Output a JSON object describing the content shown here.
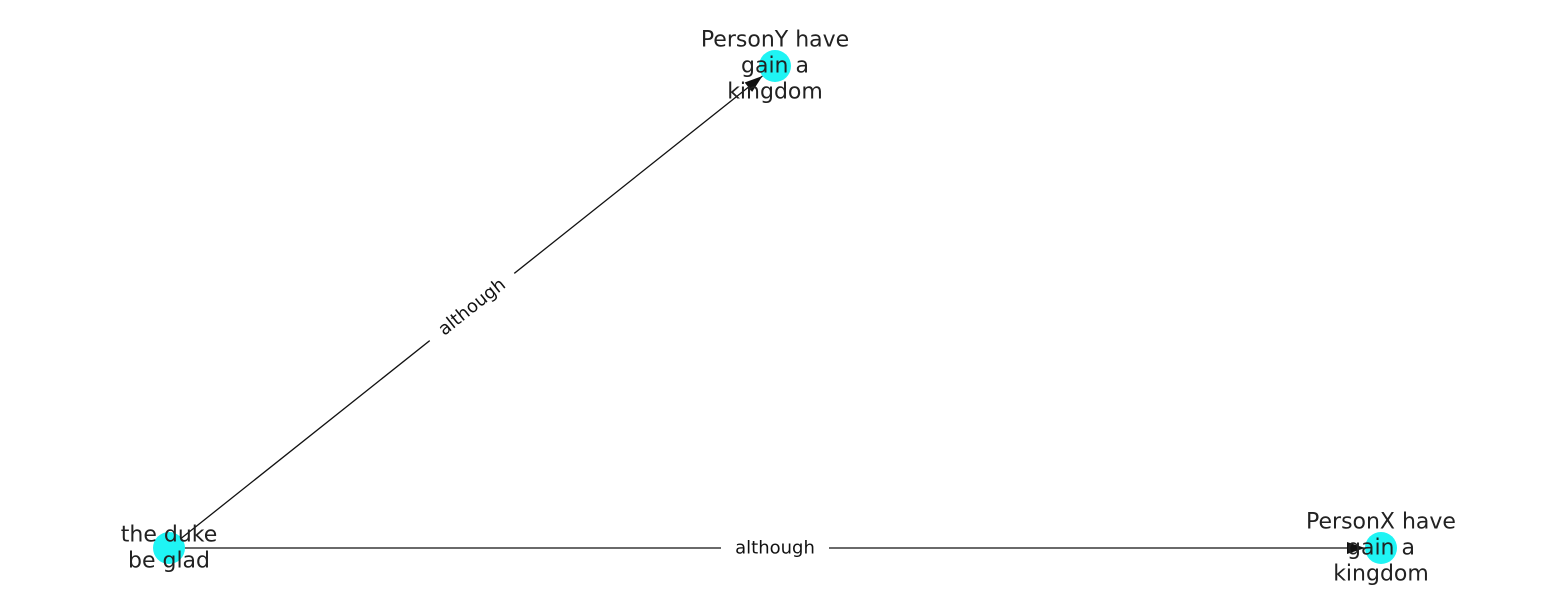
{
  "graph": {
    "node_color": "#1ff4f4",
    "edge_color": "#111111",
    "nodes": [
      {
        "id": "duke",
        "lines": [
          "the duke",
          "be glad"
        ]
      },
      {
        "id": "persony",
        "lines": [
          "PersonY have",
          "gain a",
          "kingdom"
        ]
      },
      {
        "id": "personx",
        "lines": [
          "PersonX have",
          "gain a",
          "kingdom"
        ]
      }
    ],
    "edges": [
      {
        "source": "duke",
        "target": "persony",
        "label": "although"
      },
      {
        "source": "duke",
        "target": "personx",
        "label": "although"
      }
    ]
  }
}
